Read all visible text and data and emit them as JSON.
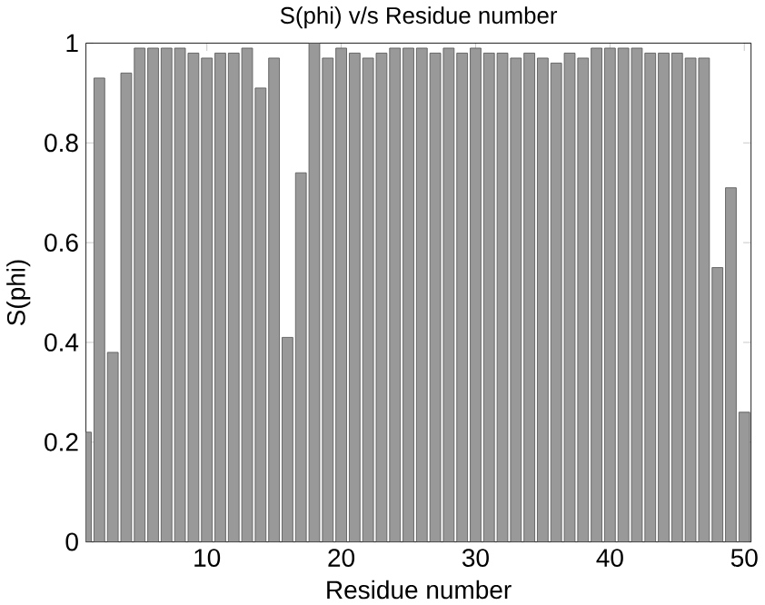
{
  "chart_data": {
    "type": "bar",
    "title": "S(phi) v/s Residue number",
    "xlabel": "Residue number",
    "ylabel": "S(phi)",
    "x": [
      1,
      2,
      3,
      4,
      5,
      6,
      7,
      8,
      9,
      10,
      11,
      12,
      13,
      14,
      15,
      16,
      17,
      18,
      19,
      20,
      21,
      22,
      23,
      24,
      25,
      26,
      27,
      28,
      29,
      30,
      31,
      32,
      33,
      34,
      35,
      36,
      37,
      38,
      39,
      40,
      41,
      42,
      43,
      44,
      45,
      46,
      47,
      48,
      49,
      50
    ],
    "values": [
      0.22,
      0.93,
      0.38,
      0.94,
      0.99,
      0.99,
      0.99,
      0.99,
      0.98,
      0.97,
      0.98,
      0.98,
      0.99,
      0.91,
      0.97,
      0.41,
      0.74,
      1.0,
      0.97,
      0.99,
      0.98,
      0.97,
      0.98,
      0.99,
      0.99,
      0.99,
      0.98,
      0.99,
      0.98,
      0.99,
      0.98,
      0.98,
      0.97,
      0.98,
      0.97,
      0.96,
      0.98,
      0.97,
      0.99,
      0.99,
      0.99,
      0.99,
      0.98,
      0.98,
      0.98,
      0.97,
      0.97,
      0.55,
      0.71,
      0.26
    ],
    "color": "#999999",
    "xlim": [
      1,
      50.5
    ],
    "ylim": [
      0,
      1
    ],
    "xticks": [
      10,
      20,
      30,
      40,
      50
    ],
    "yticks": [
      0,
      0.2,
      0.4,
      0.6,
      0.8,
      1
    ]
  }
}
